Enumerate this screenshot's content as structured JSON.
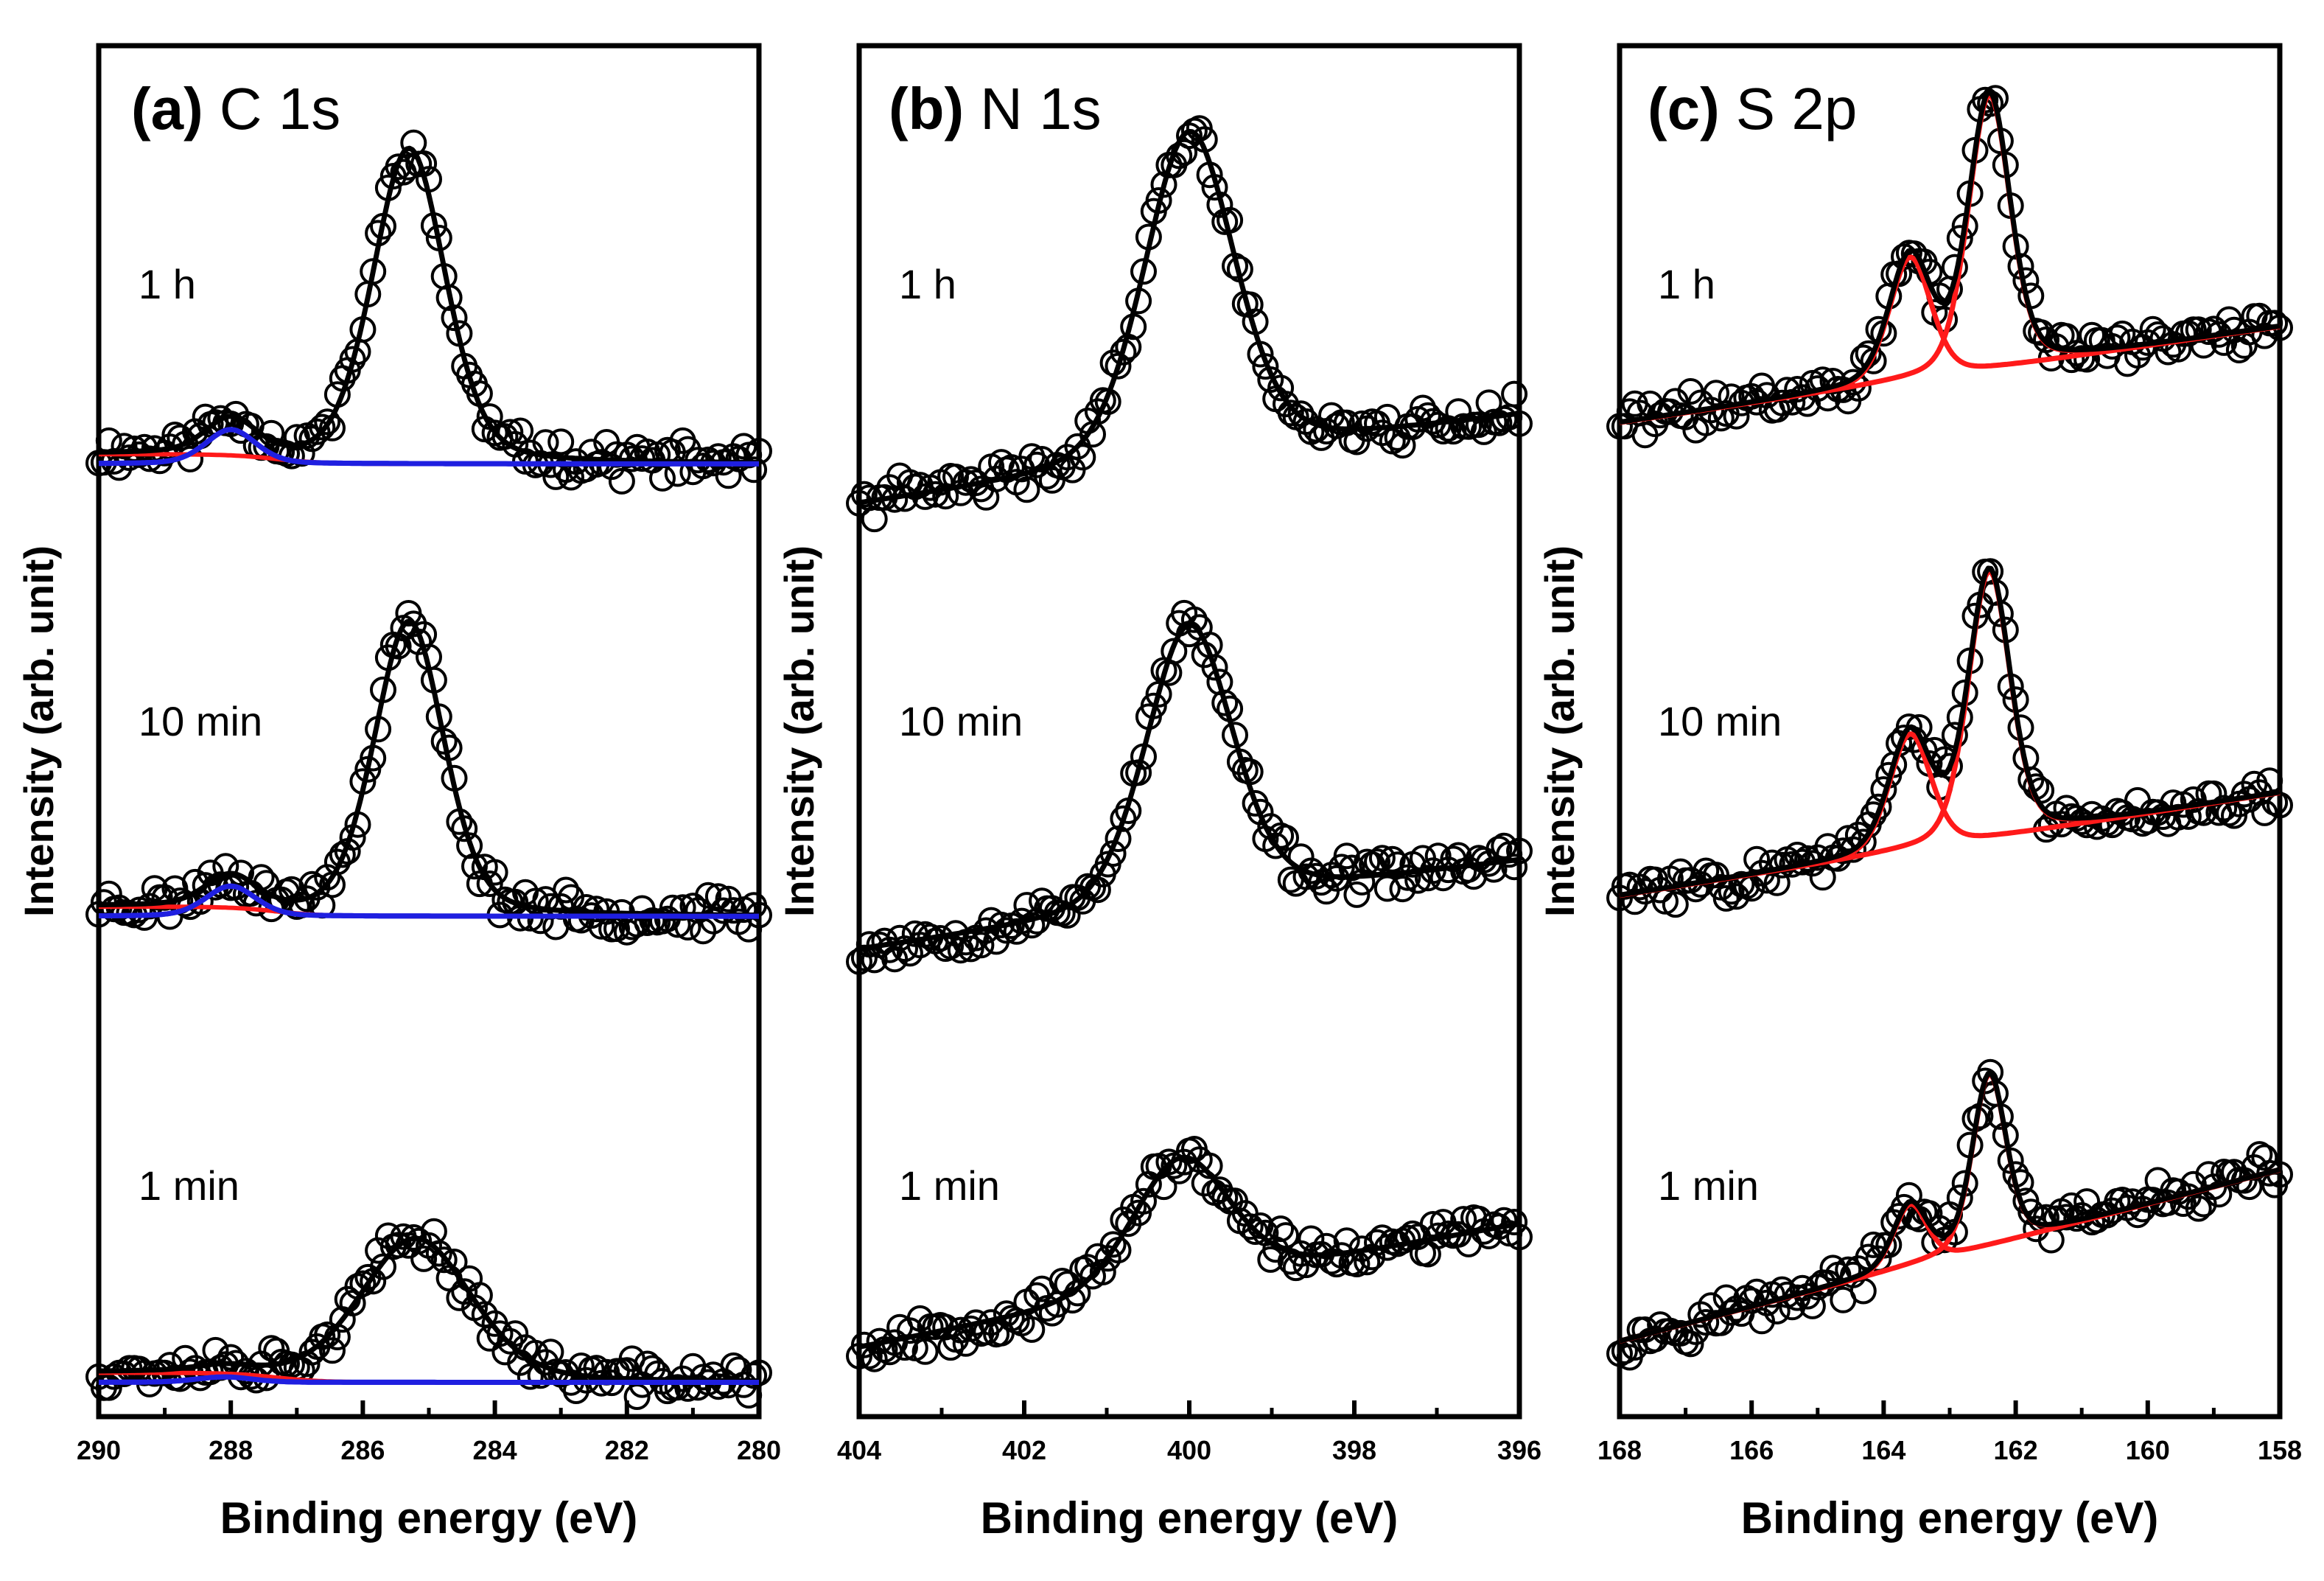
{
  "figure": {
    "panels": [
      {
        "letter": "(a)",
        "name": "C 1s"
      },
      {
        "letter": "(b)",
        "name": "N 1s"
      },
      {
        "letter": "(c)",
        "name": "S 2p"
      }
    ],
    "y_label": "Intensity (arb. unit)",
    "x_label": "Binding energy (eV)",
    "trace_labels": [
      "1 h",
      "10 min",
      "1 min"
    ]
  },
  "colors": {
    "axis": "#000000",
    "data_marker": "#000000",
    "fit_total": "#000000",
    "component_red": "#ff1a1a",
    "component_blue": "#1f1fe0"
  },
  "chart_data": [
    {
      "type": "line",
      "title": "(a) C 1s",
      "xlabel": "Binding energy (eV)",
      "ylabel": "Intensity (arb. unit)",
      "xlim": [
        290,
        280
      ],
      "x_reversed": true,
      "xticks": [
        290,
        288,
        286,
        284,
        282,
        280
      ],
      "ylim": [
        0,
        10
      ],
      "yticks": "none",
      "series": [
        {
          "name": "1 h",
          "baseline": 6.95,
          "slope": 0.0,
          "peaks": [
            {
              "center": 285.3,
              "height": 2.3,
              "fwhm": 1.3,
              "color": "black"
            },
            {
              "center": 288.0,
              "height": 0.25,
              "fwhm": 0.9,
              "color": "blue"
            }
          ],
          "red_step": {
            "center": 287.3,
            "height": 0.07
          },
          "label_y": 8.8,
          "seed": 11
        },
        {
          "name": "10 min",
          "baseline": 3.65,
          "slope": 0.0,
          "peaks": [
            {
              "center": 285.3,
              "height": 2.15,
              "fwhm": 1.25,
              "color": "black"
            },
            {
              "center": 288.0,
              "height": 0.22,
              "fwhm": 0.9,
              "color": "blue"
            }
          ],
          "red_step": {
            "center": 287.3,
            "height": 0.07
          },
          "label_y": 5.2,
          "seed": 23
        },
        {
          "name": "1 min",
          "baseline": 0.25,
          "slope": 0.0,
          "peaks": [
            {
              "center": 285.2,
              "height": 1.05,
              "fwhm": 2.0,
              "color": "black"
            },
            {
              "center": 288.1,
              "height": 0.04,
              "fwhm": 1.0,
              "color": "blue"
            }
          ],
          "red_step": {
            "center": 287.3,
            "height": 0.07
          },
          "label_y": 1.85,
          "seed": 37
        }
      ]
    },
    {
      "type": "line",
      "title": "(b) N 1s",
      "xlabel": "Binding energy (eV)",
      "ylabel": "Intensity (arb. unit)",
      "xlim": [
        404,
        396
      ],
      "x_reversed": true,
      "xticks": [
        404,
        402,
        400,
        398,
        396
      ],
      "ylim": [
        0,
        10
      ],
      "yticks": "none",
      "series": [
        {
          "name": "1 h",
          "baseline_left": 6.65,
          "baseline_right": 7.3,
          "peaks": [
            {
              "center": 400.0,
              "height": 2.4,
              "fwhm": 1.3,
              "color": "black"
            }
          ],
          "label_y": 8.8,
          "seed": 41
        },
        {
          "name": "10 min",
          "baseline_left": 3.4,
          "baseline_right": 4.05,
          "peaks": [
            {
              "center": 400.0,
              "height": 2.05,
              "fwhm": 1.25,
              "color": "black"
            }
          ],
          "label_y": 5.2,
          "seed": 53
        },
        {
          "name": "1 min",
          "baseline_left": 0.5,
          "baseline_right": 1.4,
          "peaks": [
            {
              "center": 400.1,
              "height": 0.95,
              "fwhm": 1.4,
              "color": "black"
            }
          ],
          "label_y": 1.85,
          "seed": 67
        }
      ]
    },
    {
      "type": "line",
      "title": "(c) S 2p",
      "xlabel": "Binding energy (eV)",
      "ylabel": "Intensity (arb. unit)",
      "xlim": [
        168,
        158
      ],
      "x_reversed": true,
      "xticks": [
        168,
        166,
        164,
        162,
        160,
        158
      ],
      "ylim": [
        0,
        10
      ],
      "yticks": "none",
      "series": [
        {
          "name": "1 h",
          "baseline_left": 7.25,
          "baseline_right": 7.95,
          "peaks": [
            {
              "center": 162.4,
              "height": 2.0,
              "fwhm": 0.75,
              "color": "red"
            },
            {
              "center": 163.6,
              "height": 0.9,
              "fwhm": 0.75,
              "color": "red"
            }
          ],
          "label_y": 8.8,
          "seed": 71
        },
        {
          "name": "10 min",
          "baseline_left": 3.8,
          "baseline_right": 4.55,
          "peaks": [
            {
              "center": 162.4,
              "height": 1.95,
              "fwhm": 0.75,
              "color": "red"
            },
            {
              "center": 163.6,
              "height": 0.85,
              "fwhm": 0.75,
              "color": "red"
            }
          ],
          "label_y": 5.2,
          "seed": 83
        },
        {
          "name": "1 min",
          "baseline_left": 0.55,
          "baseline_right": 1.8,
          "peaks": [
            {
              "center": 162.4,
              "height": 1.25,
              "fwhm": 0.6,
              "color": "red"
            },
            {
              "center": 163.6,
              "height": 0.45,
              "fwhm": 0.6,
              "color": "red"
            }
          ],
          "label_y": 1.85,
          "seed": 97
        }
      ]
    }
  ]
}
